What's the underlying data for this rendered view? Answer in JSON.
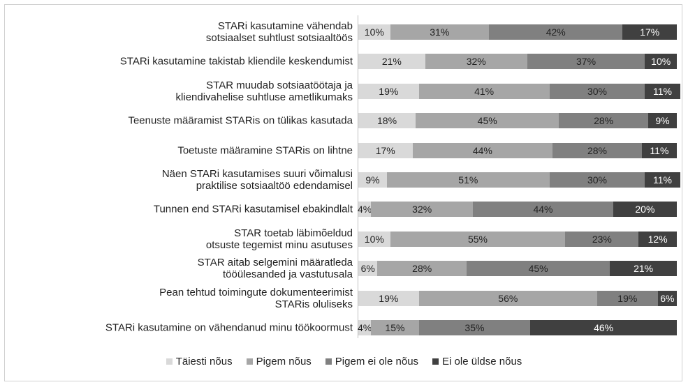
{
  "chart_data": {
    "type": "stacked-bar-horizontal",
    "categories": [
      "STARi kasutamine vähendab\nsotsiaalset suhtlust sotsiaaltöös",
      "STARi kasutamine takistab kliendile keskendumist",
      "STAR muudab sotsiaatöötaja ja\nkliendivahelise suhtluse ametlikumaks",
      "Teenuste määramist STARis on tülikas kasutada",
      "Toetuste määramine STARis on lihtne",
      "Näen STARi kasutamises suuri võimalusi\npraktilise sotsiaaltöö edendamisel",
      "Tunnen end STARi kasutamisel ebakindlalt",
      "STAR toetab läbimõeldud\notsuste tegemist minu asutuses",
      "STAR aitab selgemini määratleda\ntööülesanded ja vastutusala",
      "Pean tehtud toimingute dokumenteerimist\nSTARis oluliseks",
      "STARi kasutamine on vähendanud minu töökoormust"
    ],
    "series": [
      {
        "name": "Täiesti nõus",
        "color": "#d9d9d9",
        "text_color": "#222222",
        "values": [
          10,
          21,
          19,
          18,
          17,
          9,
          4,
          10,
          6,
          19,
          4
        ],
        "value_labels": [
          "10%",
          "21%",
          "19%",
          "18%",
          "17%",
          "9%",
          "4%",
          "10%",
          "6%",
          "19%",
          "4%"
        ]
      },
      {
        "name": "Pigem nõus",
        "color": "#a6a6a6",
        "text_color": "#222222",
        "values": [
          31,
          32,
          41,
          45,
          44,
          51,
          32,
          55,
          28,
          56,
          15
        ],
        "value_labels": [
          "31%",
          "32%",
          "41%",
          "45%",
          "44%",
          "51%",
          "32%",
          "55%",
          "28%",
          "56%",
          "15%"
        ]
      },
      {
        "name": "Pigem ei ole nõus",
        "color": "#808080",
        "text_color": "#222222",
        "values": [
          42,
          37,
          30,
          28,
          28,
          30,
          44,
          23,
          45,
          19,
          35
        ],
        "value_labels": [
          "42%",
          "37%",
          "30%",
          "28%",
          "28%",
          "30%",
          "44%",
          "23%",
          "45%",
          "19%",
          "35%"
        ]
      },
      {
        "name": "Ei ole üldse nõus",
        "color": "#404040",
        "text_color": "#ffffff",
        "values": [
          17,
          10,
          11,
          9,
          11,
          11,
          20,
          12,
          21,
          6,
          46
        ],
        "value_labels": [
          "17%",
          "10%",
          "11%",
          "9%",
          "11%",
          "11%",
          "20%",
          "12%",
          "21%",
          "6%",
          "46%"
        ]
      }
    ],
    "legend": "bottom"
  }
}
